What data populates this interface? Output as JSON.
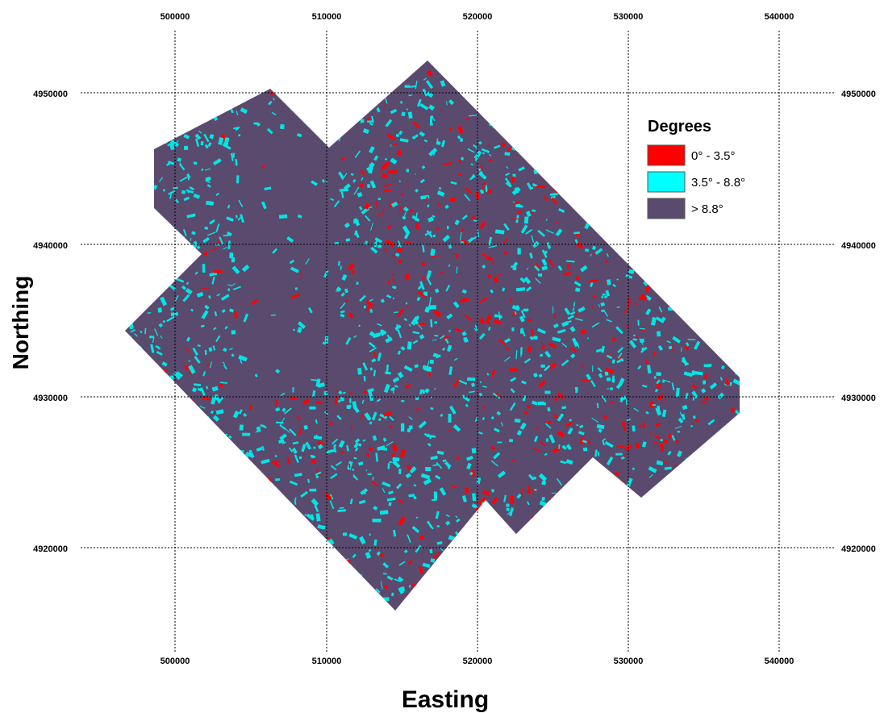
{
  "map": {
    "xlabel": "Easting",
    "ylabel": "Northing",
    "x_ticks": [
      "500000",
      "510000",
      "520000",
      "530000",
      "540000"
    ],
    "y_ticks": [
      "4950000",
      "4940000",
      "4930000",
      "4920000"
    ],
    "background_color": "#5a4a6e",
    "texture_colors": [
      "#00e5e5",
      "#ff0000"
    ]
  },
  "legend": {
    "title": "Degrees",
    "placement": "top-right",
    "items": [
      {
        "label": "0° - 3.5°",
        "color": "#ff0000"
      },
      {
        "label": "3.5° - 8.8°",
        "color": "#00ffff"
      },
      {
        "label": "> 8.8°",
        "color": "#5a4a6e"
      }
    ]
  }
}
